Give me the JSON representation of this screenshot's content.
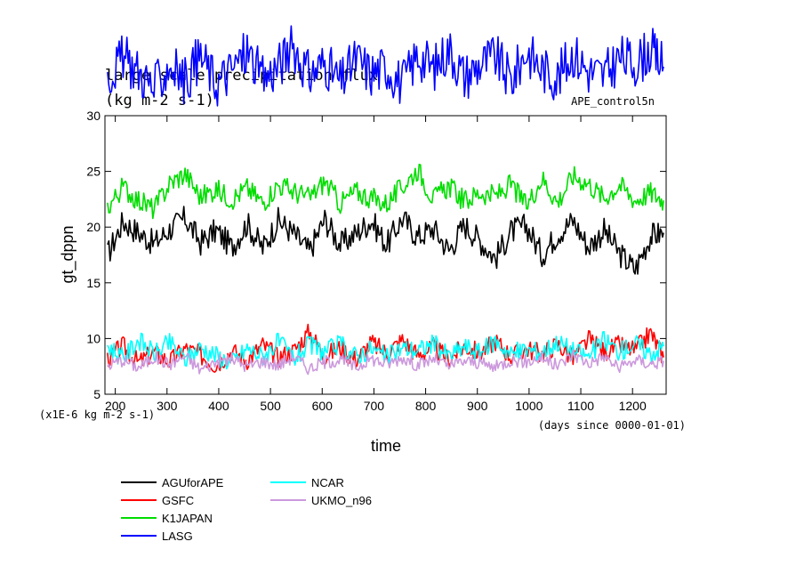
{
  "chart_data": {
    "type": "line",
    "title": "large scale precipitation flux",
    "units_label": "(kg m-2 s-1)",
    "experiment": "APE_control5n",
    "xlabel": "time",
    "ylabel": "gt_dppn",
    "x_unit_note": "(days since 0000-01-01)",
    "y_scale_note": "(x1E-6 kg m-2 s-1)",
    "xlim": [
      180,
      1265
    ],
    "ylim": [
      5,
      30
    ],
    "x_ticks": [
      200,
      300,
      400,
      500,
      600,
      700,
      800,
      900,
      1000,
      1100,
      1200
    ],
    "x_tick_labels": [
      "200",
      "300",
      "400",
      "500",
      "600",
      "700",
      "800",
      "900",
      "1000",
      "1100",
      "1200"
    ],
    "y_ticks": [
      5,
      10,
      15,
      20,
      25,
      30
    ],
    "y_tick_labels": [
      "5",
      "10",
      "15",
      "20",
      "25",
      "30"
    ],
    "grid": false,
    "legend_position": "below",
    "series": [
      {
        "name": "AGUforAPE",
        "color": "#000000",
        "x": [
          185,
          215,
          245,
          275,
          305,
          335,
          365,
          395,
          425,
          455,
          485,
          515,
          545,
          575,
          605,
          635,
          665,
          695,
          725,
          755,
          785,
          815,
          845,
          875,
          905,
          935,
          965,
          995,
          1025,
          1055,
          1085,
          1115,
          1145,
          1175,
          1205,
          1235,
          1260
        ],
        "y": [
          17.5,
          20.5,
          19.5,
          18.5,
          19.8,
          20.8,
          18.6,
          19.7,
          18.2,
          20.3,
          18.1,
          20.6,
          19.4,
          17.8,
          20.7,
          18.4,
          19.4,
          20.6,
          18.4,
          20.8,
          19.1,
          19.9,
          17.9,
          20.2,
          18.8,
          17.2,
          19.6,
          20.1,
          17.5,
          19.4,
          20.6,
          18.2,
          19.7,
          17.6,
          16.2,
          19.2,
          19.5
        ]
      },
      {
        "name": "GSFC",
        "color": "#ff0000",
        "x": [
          185,
          215,
          245,
          275,
          305,
          335,
          365,
          395,
          425,
          455,
          485,
          515,
          545,
          575,
          605,
          635,
          665,
          695,
          725,
          755,
          785,
          815,
          845,
          875,
          905,
          935,
          965,
          995,
          1025,
          1055,
          1085,
          1115,
          1145,
          1175,
          1205,
          1235,
          1260
        ],
        "y": [
          8.2,
          9.3,
          7.8,
          8.8,
          7.9,
          9.1,
          8.5,
          7.6,
          8.9,
          8.1,
          9.4,
          8.3,
          8.9,
          10.6,
          8.4,
          9.2,
          8.1,
          9.6,
          8.7,
          9.9,
          8.5,
          9.2,
          8.1,
          9.3,
          8.7,
          9.8,
          8.4,
          9.1,
          8.6,
          9.5,
          8.2,
          9.9,
          8.8,
          9.4,
          8.9,
          10.5,
          8.3
        ]
      },
      {
        "name": "K1JAPAN",
        "color": "#00dd00",
        "x": [
          185,
          215,
          245,
          275,
          305,
          335,
          365,
          395,
          425,
          455,
          485,
          515,
          545,
          575,
          605,
          635,
          665,
          695,
          725,
          755,
          785,
          815,
          845,
          875,
          905,
          935,
          965,
          995,
          1025,
          1055,
          1085,
          1115,
          1145,
          1175,
          1205,
          1235,
          1260
        ],
        "y": [
          21.8,
          23.6,
          22.4,
          21.6,
          23.9,
          24.8,
          22.7,
          23.4,
          22.5,
          23.5,
          22.2,
          23.8,
          23.2,
          22.6,
          24.1,
          22.1,
          23.2,
          22.6,
          22.1,
          23.6,
          25.2,
          22.5,
          23.7,
          22.3,
          23.1,
          22.8,
          23.8,
          21.9,
          24.4,
          22.2,
          24.6,
          23.9,
          22.6,
          23.8,
          22.4,
          23.1,
          22.4
        ]
      },
      {
        "name": "LASG",
        "color": "#0000ff",
        "x": [
          185,
          215,
          245,
          275,
          305,
          335,
          365,
          395,
          425,
          455,
          485,
          515,
          545,
          575,
          605,
          635,
          665,
          695,
          725,
          755,
          785,
          815,
          845,
          875,
          905,
          935,
          965,
          995,
          1025,
          1055,
          1085,
          1115,
          1145,
          1175,
          1205,
          1235,
          1260
        ],
        "y": [
          33.5,
          35.2,
          34.0,
          32.4,
          34.6,
          33.1,
          35.4,
          32.9,
          34.1,
          35.8,
          33.2,
          34.5,
          36.2,
          33.6,
          34.8,
          32.9,
          35.1,
          33.8,
          34.4,
          32.8,
          35.5,
          34.2,
          36.0,
          33.5,
          34.6,
          35.3,
          33.1,
          35.8,
          34.2,
          33.4,
          35.6,
          34.0,
          33.6,
          35.2,
          34.7,
          35.9,
          34.4
        ]
      },
      {
        "name": "NCAR",
        "color": "#00ffff",
        "x": [
          185,
          215,
          245,
          275,
          305,
          335,
          365,
          395,
          425,
          455,
          485,
          515,
          545,
          575,
          605,
          635,
          665,
          695,
          725,
          755,
          785,
          815,
          845,
          875,
          905,
          935,
          965,
          995,
          1025,
          1055,
          1085,
          1115,
          1145,
          1175,
          1205,
          1235,
          1260
        ],
        "y": [
          9.4,
          8.2,
          9.9,
          8.6,
          9.6,
          8.1,
          9.2,
          8.5,
          7.8,
          9.1,
          8.4,
          9.7,
          8.2,
          9.4,
          8.8,
          9.5,
          8.4,
          9.1,
          8.3,
          9.2,
          8.9,
          9.6,
          8.4,
          9.3,
          8.7,
          9.8,
          8.6,
          9.0,
          8.8,
          9.7,
          8.9,
          8.4,
          9.9,
          8.8,
          9.6,
          8.6,
          9.3
        ]
      },
      {
        "name": "UKMO_n96",
        "color": "#cc99dd",
        "x": [
          185,
          215,
          245,
          275,
          305,
          335,
          365,
          395,
          425,
          455,
          485,
          515,
          545,
          575,
          605,
          635,
          665,
          695,
          725,
          755,
          785,
          815,
          845,
          875,
          905,
          935,
          965,
          995,
          1025,
          1055,
          1085,
          1115,
          1145,
          1175,
          1205,
          1235,
          1260
        ],
        "y": [
          7.6,
          8.1,
          7.4,
          8.3,
          7.7,
          8.4,
          7.2,
          7.9,
          8.2,
          7.5,
          8.0,
          7.6,
          8.4,
          7.3,
          7.9,
          8.1,
          7.4,
          8.2,
          7.7,
          8.3,
          7.6,
          8.2,
          7.5,
          8.0,
          7.8,
          7.4,
          8.1,
          7.9,
          8.3,
          7.5,
          8.6,
          7.8,
          8.4,
          7.3,
          8.1,
          7.7,
          8.0
        ]
      }
    ]
  }
}
